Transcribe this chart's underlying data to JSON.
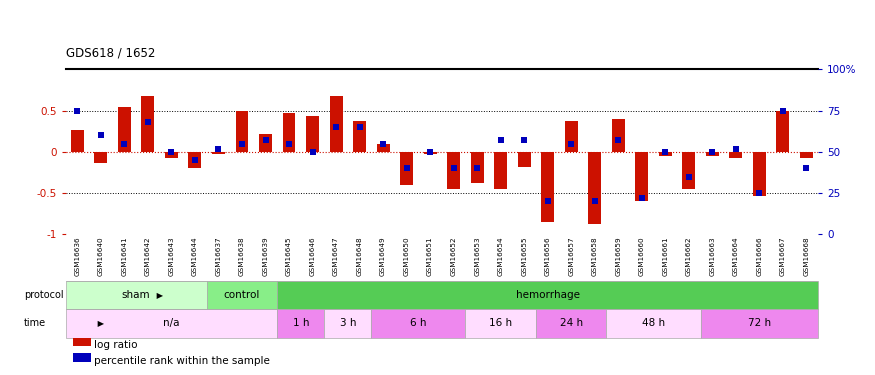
{
  "title": "GDS618 / 1652",
  "samples": [
    "GSM16636",
    "GSM16640",
    "GSM16641",
    "GSM16642",
    "GSM16643",
    "GSM16644",
    "GSM16637",
    "GSM16638",
    "GSM16639",
    "GSM16645",
    "GSM16646",
    "GSM16647",
    "GSM16648",
    "GSM16649",
    "GSM16650",
    "GSM16651",
    "GSM16652",
    "GSM16653",
    "GSM16654",
    "GSM16655",
    "GSM16656",
    "GSM16657",
    "GSM16658",
    "GSM16659",
    "GSM16660",
    "GSM16661",
    "GSM16662",
    "GSM16663",
    "GSM16664",
    "GSM16666",
    "GSM16667",
    "GSM16668"
  ],
  "log_ratio": [
    0.27,
    -0.13,
    0.55,
    0.68,
    -0.08,
    -0.2,
    -0.02,
    0.5,
    0.22,
    0.47,
    0.44,
    0.68,
    0.38,
    0.1,
    -0.4,
    -0.03,
    -0.45,
    -0.38,
    -0.45,
    -0.18,
    -0.85,
    0.38,
    -0.88,
    0.4,
    -0.6,
    -0.05,
    -0.45,
    -0.05,
    -0.08,
    -0.54,
    0.5,
    -0.08
  ],
  "pct_rank": [
    75,
    60,
    55,
    68,
    50,
    45,
    52,
    55,
    57,
    55,
    50,
    65,
    65,
    55,
    40,
    50,
    40,
    40,
    57,
    57,
    20,
    55,
    20,
    57,
    22,
    50,
    35,
    50,
    52,
    25,
    75,
    40
  ],
  "protocol_groups": [
    {
      "label": "sham",
      "start": 0,
      "end": 6,
      "color": "#ccffcc"
    },
    {
      "label": "control",
      "start": 6,
      "end": 9,
      "color": "#88ee88"
    },
    {
      "label": "hemorrhage",
      "start": 9,
      "end": 32,
      "color": "#55cc55"
    }
  ],
  "time_groups": [
    {
      "label": "n/a",
      "start": 0,
      "end": 9,
      "color": "#ffddff"
    },
    {
      "label": "1 h",
      "start": 9,
      "end": 11,
      "color": "#ee88ee"
    },
    {
      "label": "3 h",
      "start": 11,
      "end": 13,
      "color": "#ffddff"
    },
    {
      "label": "6 h",
      "start": 13,
      "end": 17,
      "color": "#ee88ee"
    },
    {
      "label": "16 h",
      "start": 17,
      "end": 20,
      "color": "#ffddff"
    },
    {
      "label": "24 h",
      "start": 20,
      "end": 23,
      "color": "#ee88ee"
    },
    {
      "label": "48 h",
      "start": 23,
      "end": 27,
      "color": "#ffddff"
    },
    {
      "label": "72 h",
      "start": 27,
      "end": 32,
      "color": "#ee88ee"
    }
  ],
  "bar_color": "#cc1100",
  "dot_color": "#0000bb",
  "ylim": [
    -1,
    1
  ],
  "yticks_left": [
    -1,
    -0.5,
    0,
    0.5
  ],
  "yticks_right": [
    0,
    25,
    50,
    75,
    100
  ],
  "dotted_lines_black": [
    -0.5,
    0.5
  ],
  "dotted_line_red": 0,
  "bar_width": 0.55
}
